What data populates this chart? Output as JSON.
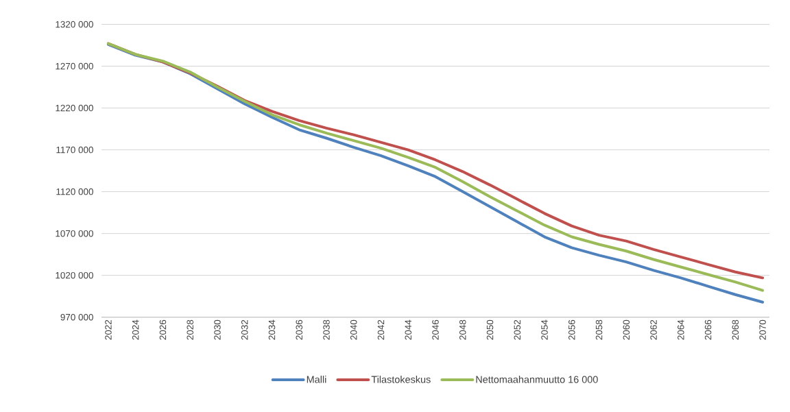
{
  "chart_data": {
    "type": "line",
    "x": [
      2022,
      2024,
      2026,
      2028,
      2030,
      2032,
      2034,
      2036,
      2038,
      2040,
      2042,
      2044,
      2046,
      2048,
      2050,
      2052,
      2054,
      2056,
      2058,
      2060,
      2062,
      2064,
      2066,
      2068,
      2070
    ],
    "series": [
      {
        "name": "Malli",
        "color": "#4f81bd",
        "values": [
          1296000,
          1283000,
          1275000,
          1261000,
          1243000,
          1225000,
          1209000,
          1194000,
          1184000,
          1173000,
          1163000,
          1151000,
          1138000,
          1120000,
          1102000,
          1084000,
          1066000,
          1053000,
          1044000,
          1036000,
          1026000,
          1017000,
          1007000,
          997000,
          988000
        ]
      },
      {
        "name": "Tilastokeskus",
        "color": "#c0504d",
        "values": [
          1297000,
          1284000,
          1275000,
          1262000,
          1246000,
          1229000,
          1216000,
          1205000,
          1196000,
          1188000,
          1179000,
          1170000,
          1158000,
          1144000,
          1128000,
          1111000,
          1094000,
          1079000,
          1068000,
          1061000,
          1051000,
          1042000,
          1033000,
          1024000,
          1017000
        ]
      },
      {
        "name": "Nettomaahanmuutto 16 000",
        "color": "#9bbb59",
        "values": [
          1297000,
          1284000,
          1276000,
          1263000,
          1245000,
          1228000,
          1212000,
          1200000,
          1190000,
          1181000,
          1172000,
          1161000,
          1149000,
          1132000,
          1114000,
          1097000,
          1080000,
          1066000,
          1057000,
          1049000,
          1039000,
          1030000,
          1021000,
          1012000,
          1002000
        ]
      }
    ],
    "xlim": [
      2021.5,
      2070.5
    ],
    "xticks": [
      2022,
      2024,
      2026,
      2028,
      2030,
      2032,
      2034,
      2036,
      2038,
      2040,
      2042,
      2044,
      2046,
      2048,
      2050,
      2052,
      2054,
      2056,
      2058,
      2060,
      2062,
      2064,
      2066,
      2068,
      2070
    ],
    "ylim": [
      970000,
      1320000
    ],
    "yticks": [
      {
        "value": 970000,
        "label": "970 000"
      },
      {
        "value": 1020000,
        "label": "1020 000"
      },
      {
        "value": 1070000,
        "label": "1070 000"
      },
      {
        "value": 1120000,
        "label": "1120 000"
      },
      {
        "value": 1170000,
        "label": "1170 000"
      },
      {
        "value": 1220000,
        "label": "1220 000"
      },
      {
        "value": 1270000,
        "label": "1270 000"
      },
      {
        "value": 1320000,
        "label": "1320 000"
      }
    ],
    "grid": "y",
    "legend": "bottom",
    "marker": "none",
    "line_style": "solid"
  }
}
